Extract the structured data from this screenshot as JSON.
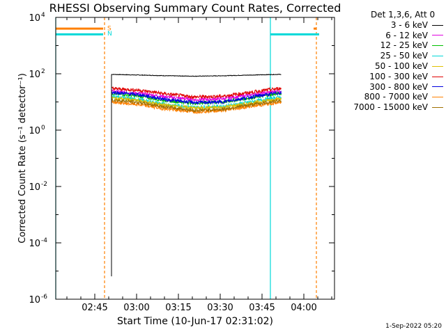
{
  "chart_data": {
    "type": "line",
    "title": "RHESSI Observing Summary Count Rates, Corrected",
    "xlabel": "Start Time (10-Jun-17 02:31:02)",
    "ylabel": "Corrected Count Rate (s⁻¹ detector⁻¹)",
    "y_scale": "log",
    "ylim": [
      1e-06,
      10000
    ],
    "xlim_minutes": [
      0,
      100
    ],
    "x_ticks": [
      {
        "label": "02:45",
        "minutes": 14
      },
      {
        "label": "03:00",
        "minutes": 29
      },
      {
        "label": "03:15",
        "minutes": 44
      },
      {
        "label": "03:30",
        "minutes": 59
      },
      {
        "label": "03:45",
        "minutes": 74
      },
      {
        "label": "04:00",
        "minutes": 89
      }
    ],
    "y_ticks": [
      {
        "base": "10",
        "exp": "4",
        "value": 10000
      },
      {
        "base": "10",
        "exp": "2",
        "value": 100
      },
      {
        "base": "10",
        "exp": "0",
        "value": 1
      },
      {
        "base": "10",
        "exp": "-2",
        "value": 0.01
      },
      {
        "base": "10",
        "exp": "-4",
        "value": 0.0001
      },
      {
        "base": "10",
        "exp": "-6",
        "value": 1e-06
      }
    ],
    "legend_title": "Det 1,3,6, Att 0",
    "legend_placement": "right",
    "series": [
      {
        "name": "3 - 6 keV",
        "color": "#000000",
        "x": [
          20,
          30,
          40,
          50,
          60,
          70,
          80,
          81
        ],
        "y": [
          95,
          90,
          85,
          82,
          85,
          90,
          95,
          95
        ]
      },
      {
        "name": "6 - 12 keV",
        "color": "#e000e0",
        "x": [
          20,
          30,
          40,
          50,
          60,
          70,
          80,
          81
        ],
        "y": [
          24,
          20,
          15,
          12,
          13,
          18,
          24,
          24
        ]
      },
      {
        "name": "12 - 25 keV",
        "color": "#00c000",
        "x": [
          20,
          30,
          40,
          50,
          60,
          70,
          80,
          81
        ],
        "y": [
          20,
          16,
          11,
          9,
          10,
          14,
          20,
          20
        ]
      },
      {
        "name": "25 - 50 keV",
        "color": "#00d8d8",
        "x": [
          20,
          30,
          40,
          50,
          60,
          70,
          80,
          81
        ],
        "y": [
          16,
          12,
          8,
          6.5,
          7,
          10,
          15,
          15
        ]
      },
      {
        "name": "50 - 100 keV",
        "color": "#e0c000",
        "x": [
          20,
          30,
          40,
          50,
          60,
          70,
          80,
          81
        ],
        "y": [
          14,
          11,
          7.5,
          6,
          6.5,
          9,
          13,
          13
        ]
      },
      {
        "name": "100 - 300 keV",
        "color": "#e00000",
        "x": [
          20,
          30,
          40,
          50,
          60,
          70,
          80,
          81
        ],
        "y": [
          30,
          26,
          19,
          15,
          16,
          22,
          30,
          30
        ]
      },
      {
        "name": "300 - 800 keV",
        "color": "#0000e0",
        "x": [
          20,
          30,
          40,
          50,
          60,
          70,
          80,
          81
        ],
        "y": [
          22,
          18,
          12,
          9.5,
          10,
          15,
          21,
          21
        ]
      },
      {
        "name": "800 - 7000 keV",
        "color": "#ff8000",
        "x": [
          20,
          30,
          40,
          50,
          60,
          70,
          80,
          81
        ],
        "y": [
          10,
          8,
          5.5,
          4.5,
          5,
          7,
          9.5,
          9.5
        ]
      },
      {
        "name": "7000 - 15000 keV",
        "color": "#a07000",
        "x": [
          20,
          30,
          40,
          50,
          60,
          70,
          80,
          81
        ],
        "y": [
          12,
          9.5,
          6.5,
          5,
          5.5,
          8,
          11,
          11
        ]
      }
    ],
    "annotations": [
      {
        "text": "S",
        "color": "#ff8000",
        "x_minutes": 18.5,
        "y": 4200
      },
      {
        "text": "N",
        "color": "#00d8d8",
        "x_minutes": 18.5,
        "y": 2700
      }
    ],
    "saa_night_bars": [
      {
        "label": "S",
        "color": "#ff8000",
        "y": 4000,
        "x_ranges": [
          [
            0,
            17
          ],
          [
            92.5,
            93.5
          ]
        ]
      },
      {
        "label": "N",
        "color": "#00d8d8",
        "x_ranges": [
          [
            0,
            17
          ],
          [
            77,
            94.5
          ]
        ],
        "y": 2500
      }
    ],
    "vertical_markers": [
      {
        "color": "#00d8d8",
        "style": "solid",
        "x_minutes": 0
      },
      {
        "color": "#00d8d8",
        "style": "solid",
        "x_minutes": 77
      },
      {
        "color": "#ff8000",
        "style": "dashed",
        "x_minutes": 17.5
      },
      {
        "color": "#ff8000",
        "style": "dashed",
        "x_minutes": 93.5
      }
    ],
    "footer": "1-Sep-2022 05:20"
  }
}
